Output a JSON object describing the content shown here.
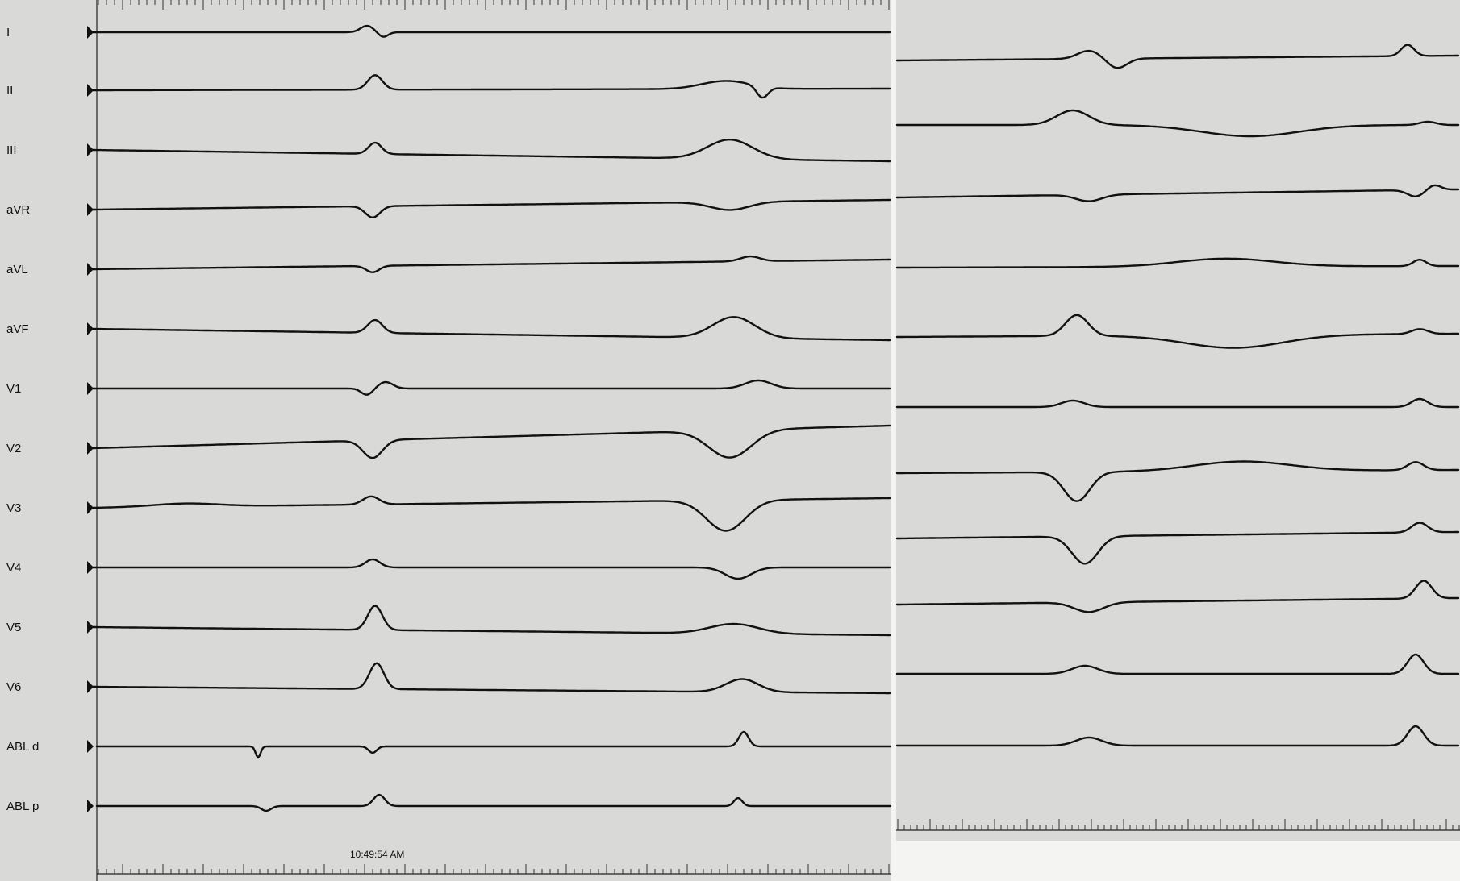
{
  "chart_data": {
    "type": "line",
    "leads": [
      "I",
      "II",
      "III",
      "aVR",
      "aVL",
      "aVF",
      "V1",
      "V2",
      "V3",
      "V4",
      "V5",
      "V6",
      "ABL d",
      "ABL p"
    ],
    "timestamp": "10:49:54 AM",
    "grid": false,
    "colors": {
      "background": "#d9d9d7",
      "trace": "#111111",
      "gap": "#f4f4f2"
    }
  }
}
